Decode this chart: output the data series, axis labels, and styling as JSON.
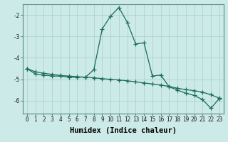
{
  "xlabel": "Humidex (Indice chaleur)",
  "background_color": "#cceae7",
  "grid_color": "#aed4d0",
  "line_color": "#1a6b5e",
  "x_values": [
    0,
    1,
    2,
    3,
    4,
    5,
    6,
    7,
    8,
    9,
    10,
    11,
    12,
    13,
    14,
    15,
    16,
    17,
    18,
    19,
    20,
    21,
    22,
    23
  ],
  "y1_values": [
    -4.5,
    -4.75,
    -4.8,
    -4.85,
    -4.85,
    -4.9,
    -4.9,
    -4.9,
    -4.55,
    -2.65,
    -2.05,
    -1.65,
    -2.35,
    -3.35,
    -3.3,
    -4.85,
    -4.8,
    -5.35,
    -5.5,
    -5.65,
    -5.75,
    -5.95,
    -6.35,
    -5.9
  ],
  "y2_values": [
    -4.5,
    -4.65,
    -4.72,
    -4.77,
    -4.82,
    -4.85,
    -4.88,
    -4.9,
    -4.93,
    -4.97,
    -5.0,
    -5.03,
    -5.07,
    -5.12,
    -5.17,
    -5.22,
    -5.27,
    -5.33,
    -5.42,
    -5.48,
    -5.53,
    -5.6,
    -5.72,
    -5.88
  ],
  "ylim": [
    -6.6,
    -1.5
  ],
  "xlim": [
    -0.5,
    23.5
  ],
  "yticks": [
    -6,
    -5,
    -4,
    -3,
    -2
  ],
  "xticks": [
    0,
    1,
    2,
    3,
    4,
    5,
    6,
    7,
    8,
    9,
    10,
    11,
    12,
    13,
    14,
    15,
    16,
    17,
    18,
    19,
    20,
    21,
    22,
    23
  ],
  "tick_fontsize": 5.5,
  "label_fontsize": 7.5
}
